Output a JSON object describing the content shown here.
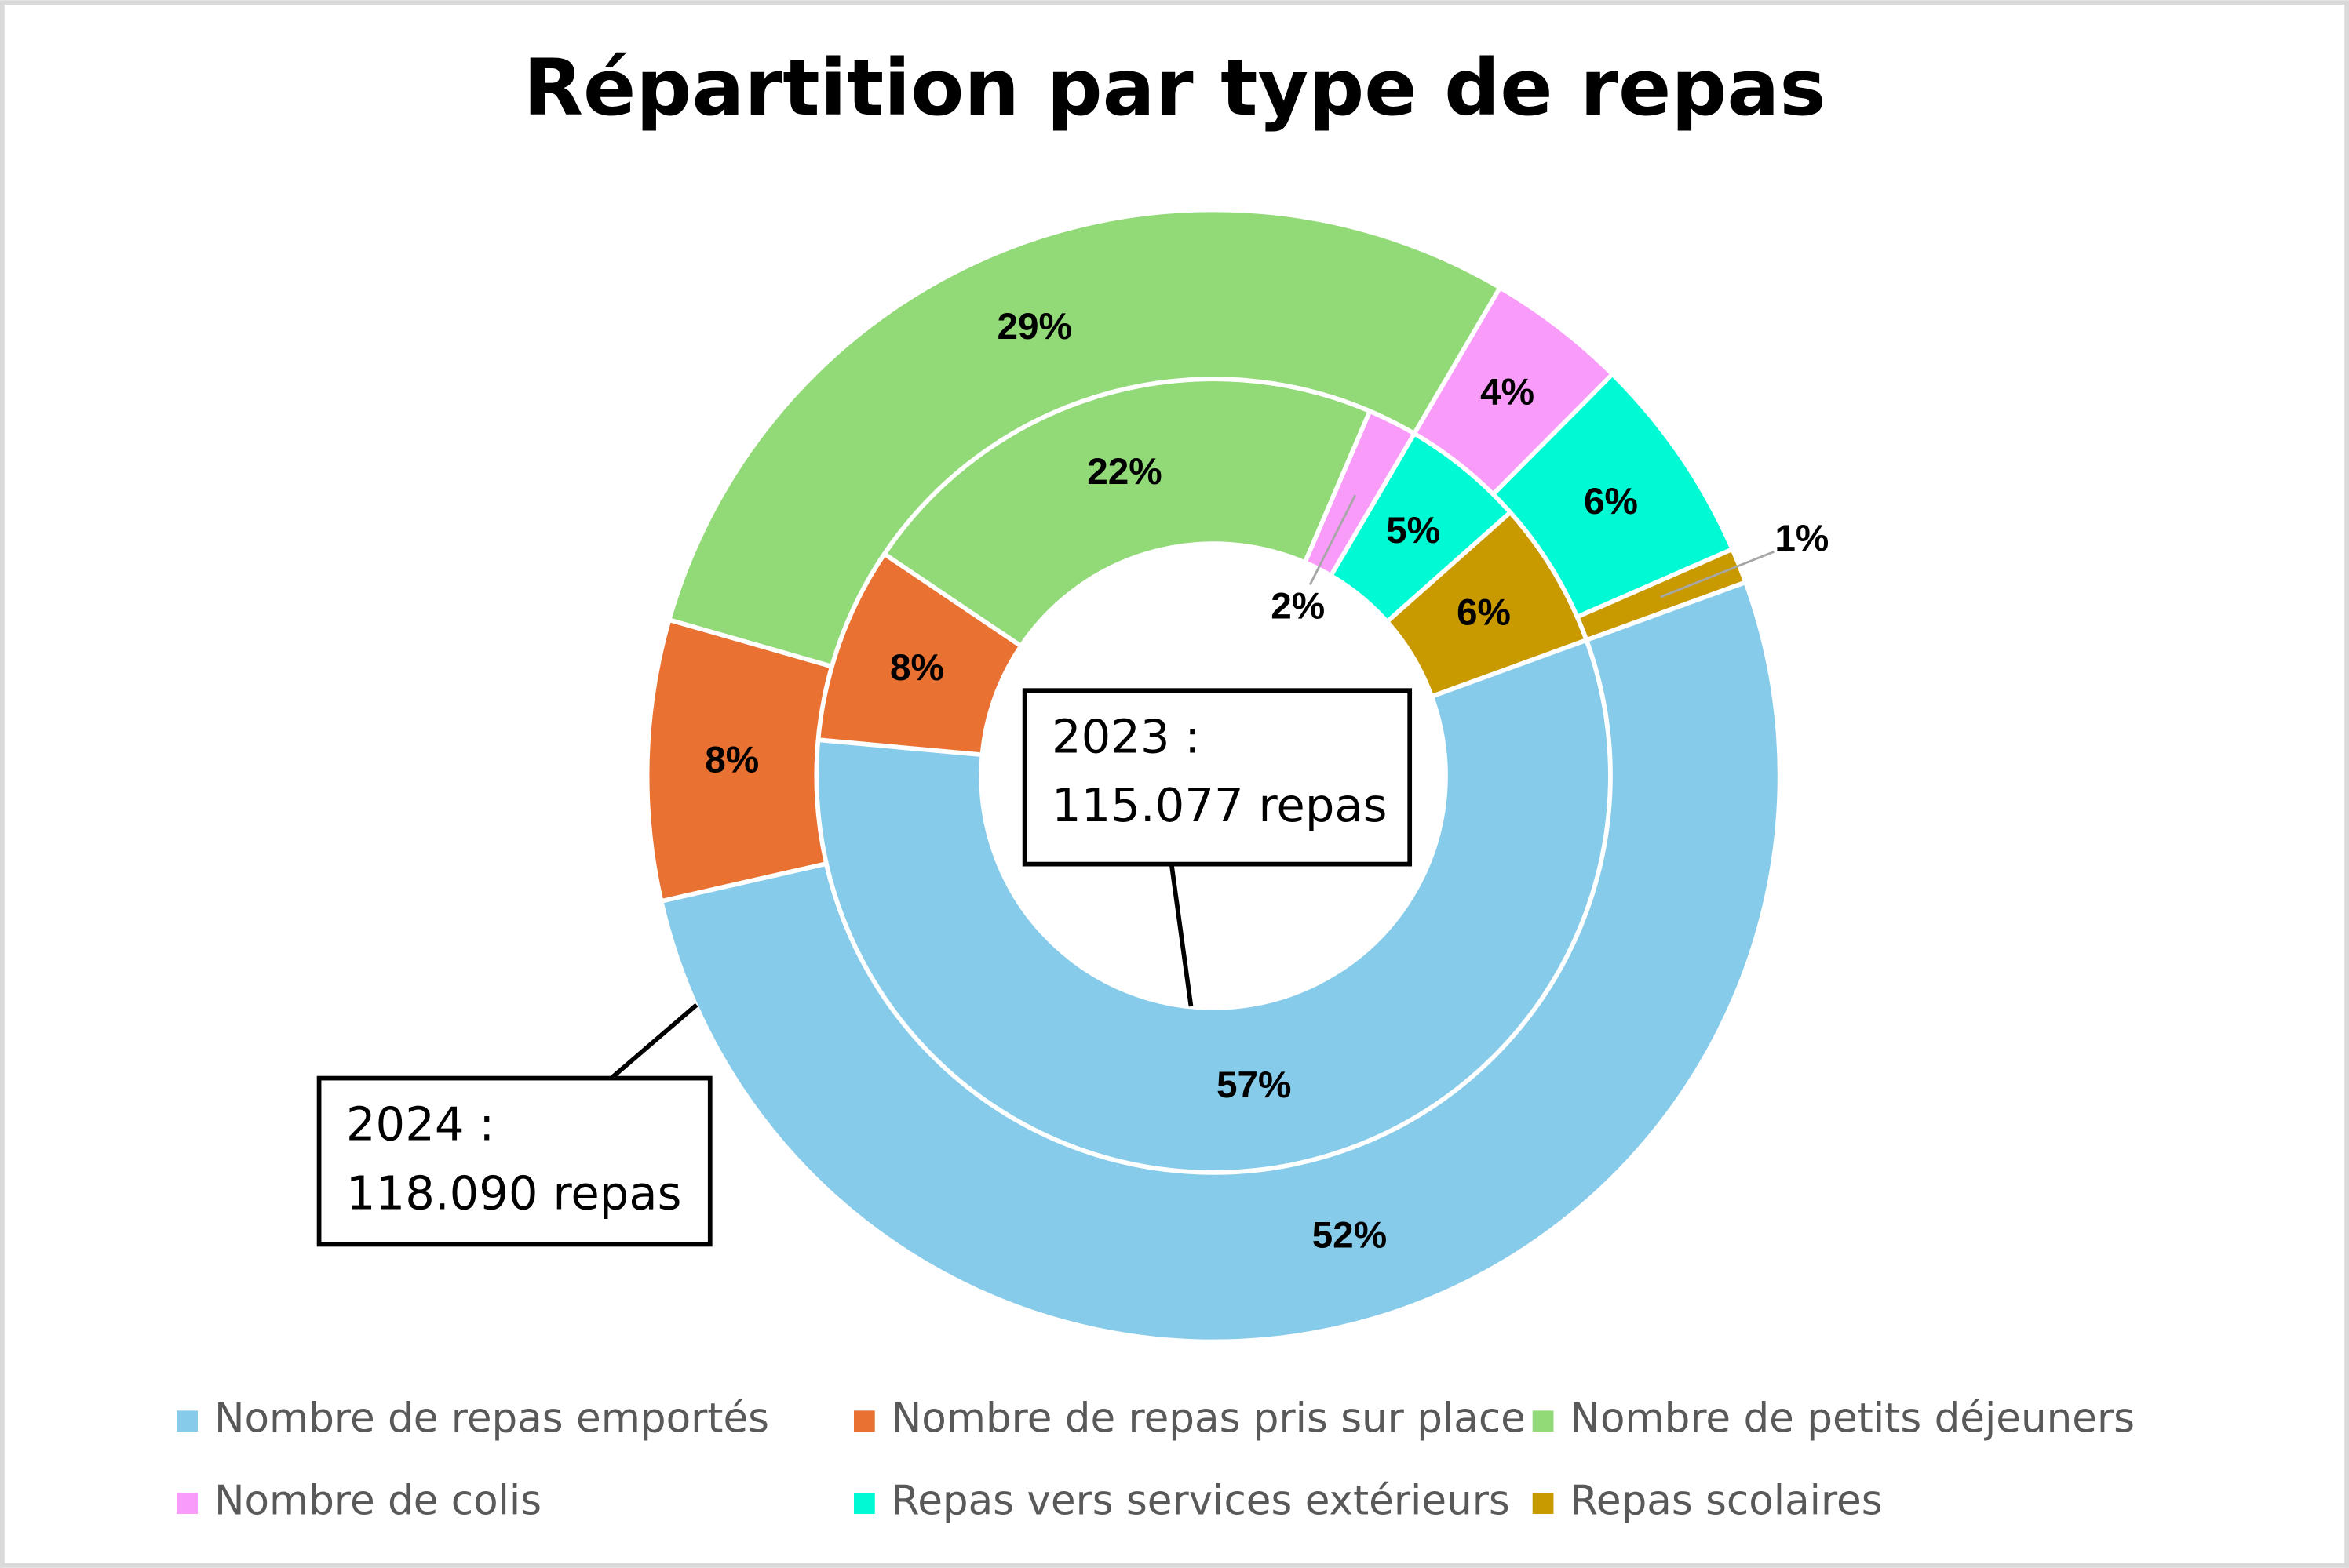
{
  "chart_data": {
    "type": "donut",
    "title": "Répartition par type de repas",
    "categories": [
      "Nombre de repas emportés",
      "Nombre de repas pris sur place",
      "Nombre de petits déjeuners",
      "Nombre de colis",
      "Repas vers services extérieurs",
      "Repas scolaires"
    ],
    "colors": [
      "#87cbea",
      "#e97132",
      "#92d977",
      "#f99bf9",
      "#00fad4",
      "#c89a00"
    ],
    "series": [
      {
        "values": [
          57,
          8,
          22,
          2,
          5,
          6
        ],
        "value_labels": [
          "57%",
          "8%",
          "22%",
          "2%",
          "5%",
          "6%"
        ]
      },
      {
        "values": [
          52,
          8,
          29,
          4,
          6,
          1
        ],
        "value_labels": [
          "52%",
          "8%",
          "29%",
          "4%",
          "6%",
          "1%"
        ]
      }
    ],
    "annotations": [
      {
        "lines": [
          "2023 :",
          "115.077 repas"
        ]
      },
      {
        "lines": [
          "2024 :",
          "118.090 repas"
        ]
      }
    ],
    "legend": "bottom"
  }
}
